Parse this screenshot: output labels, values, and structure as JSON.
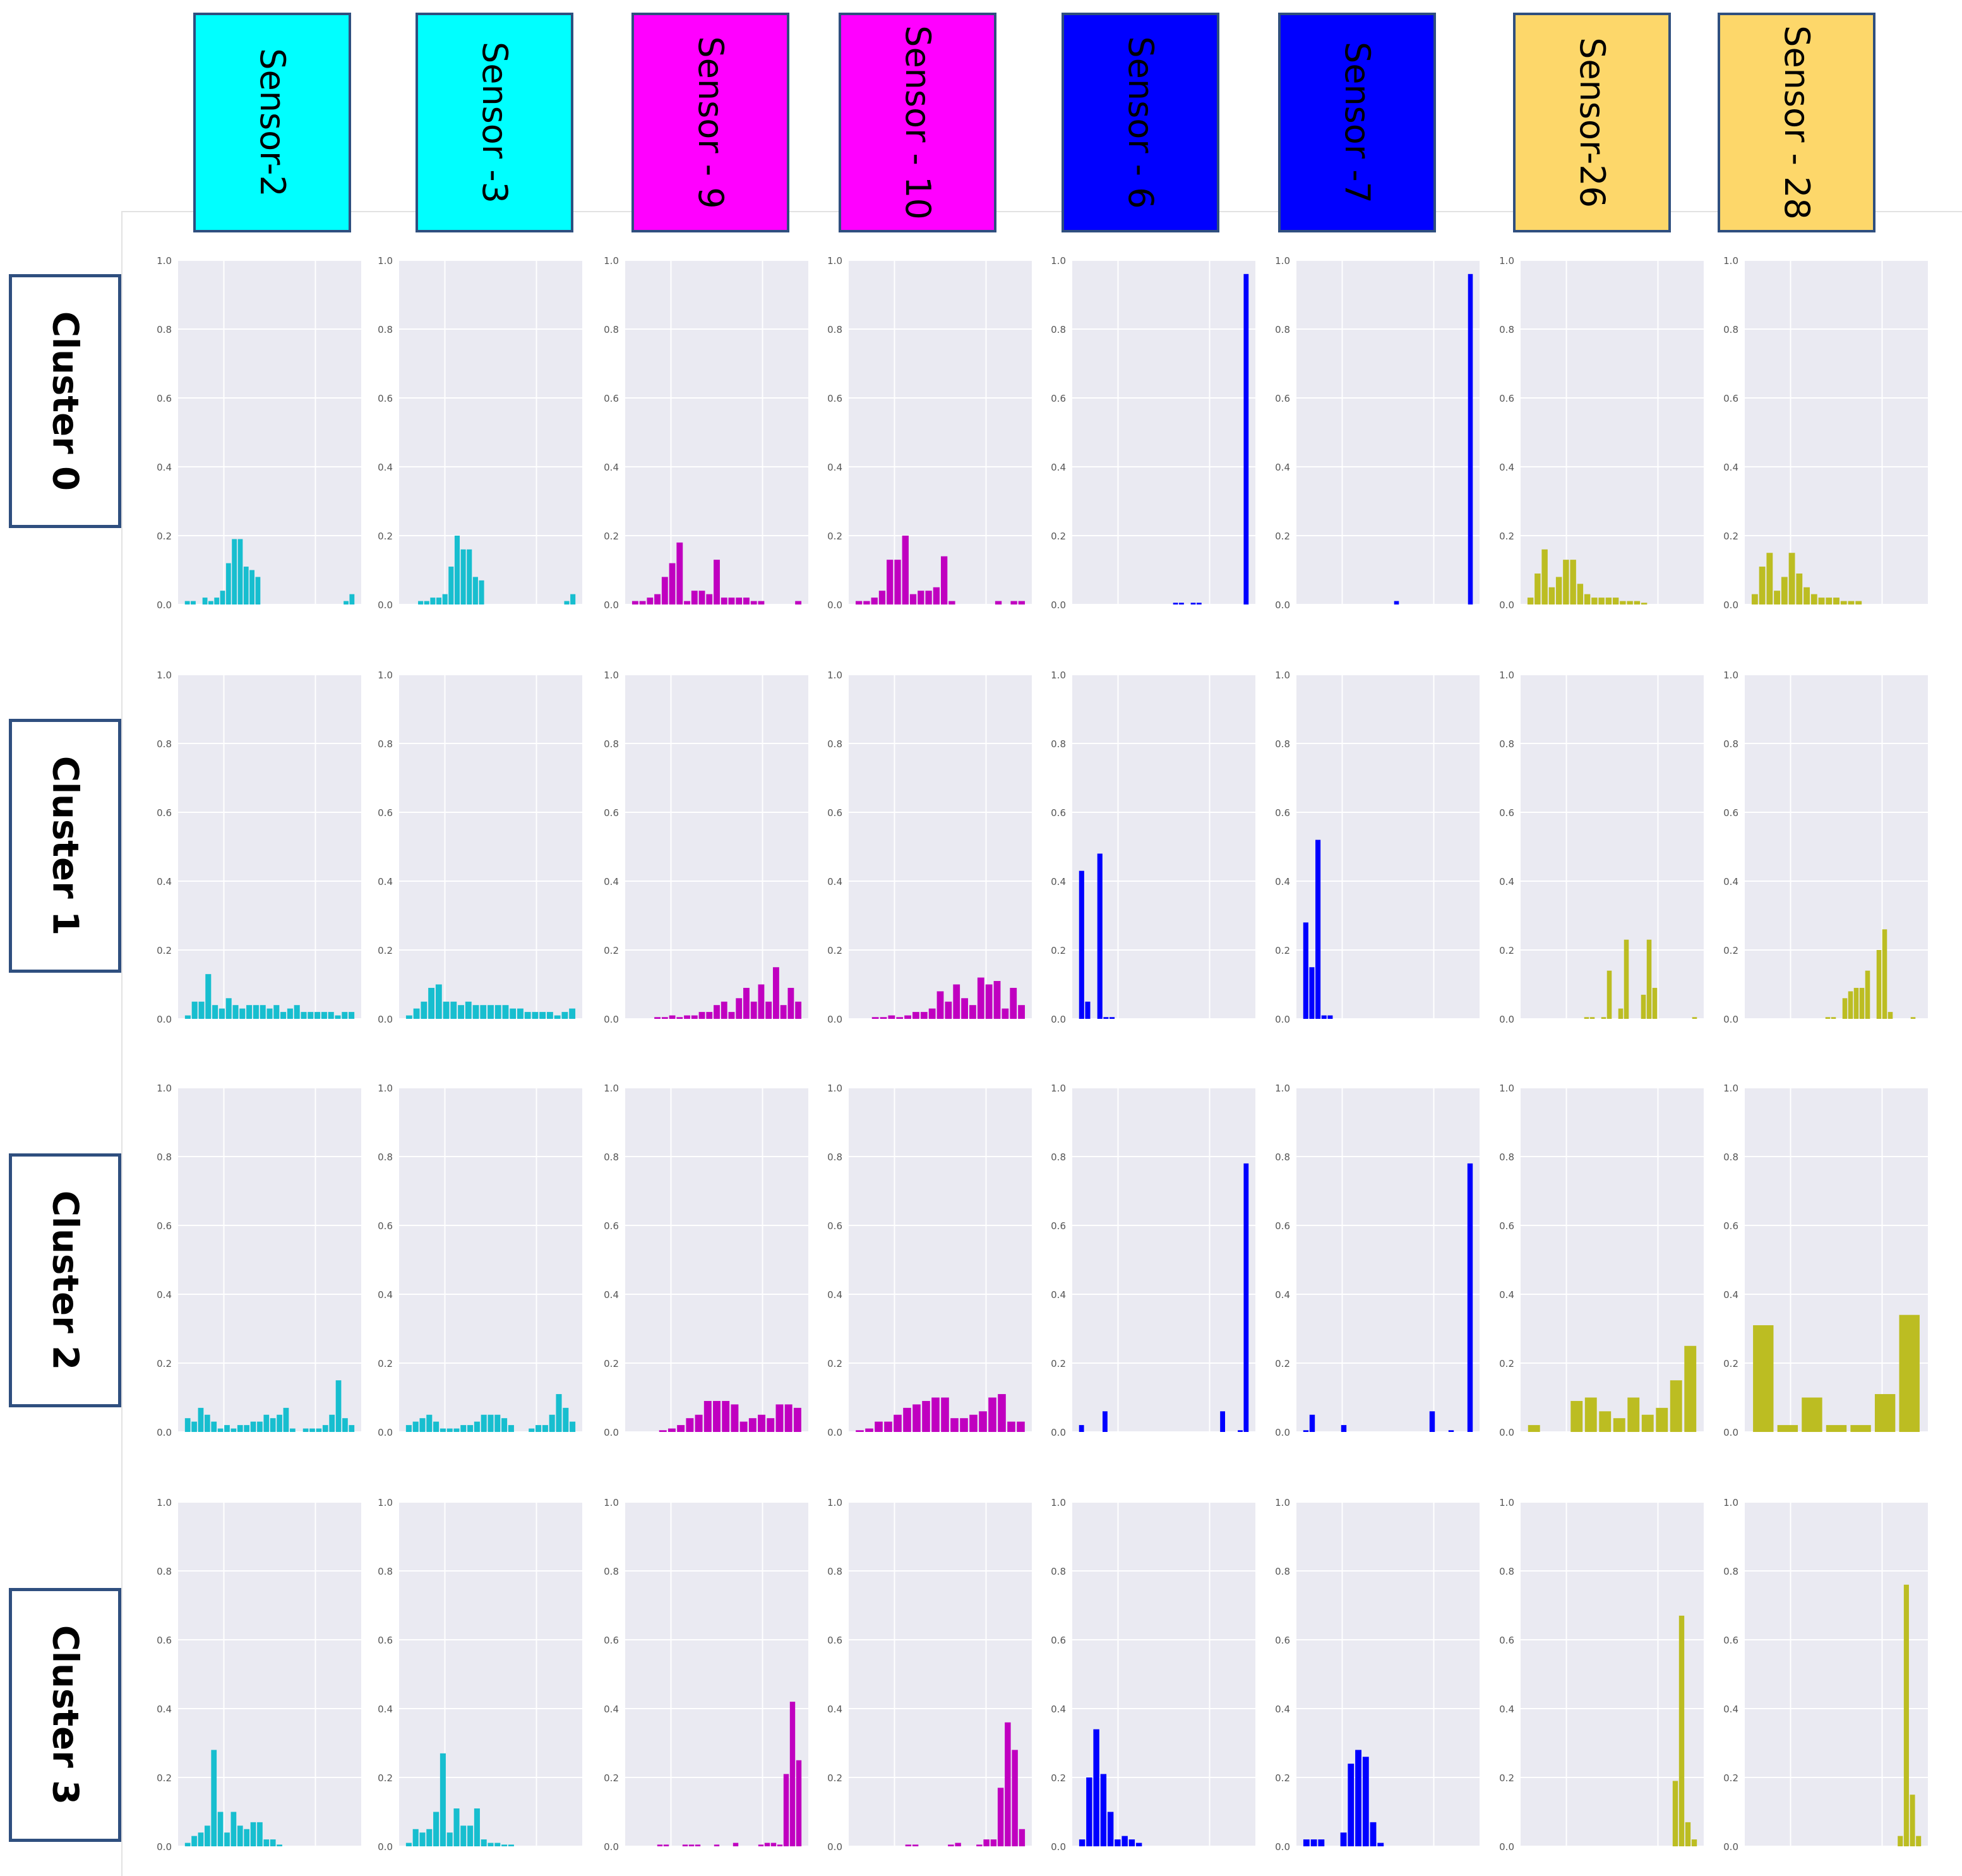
{
  "chart_data": {
    "type": "bar",
    "title": "",
    "ylim": [
      0,
      1.0
    ],
    "yticks": [
      "0.0",
      "0.2",
      "0.4",
      "0.6",
      "0.8",
      "1.0"
    ],
    "grid": true,
    "columns": [
      {
        "label": "Sensor-2",
        "color": "#17becf",
        "header_color": "#00ffff",
        "bar_color": "#17becf"
      },
      {
        "label": "Sensor -3",
        "color": "#17becf",
        "header_color": "#00ffff",
        "bar_color": "#17becf"
      },
      {
        "label": "Sensor - 9",
        "color": "#c000c0",
        "header_color": "#ff00ff",
        "bar_color": "#c000c0"
      },
      {
        "label": "Sensor - 10",
        "color": "#c000c0",
        "header_color": "#ff00ff",
        "bar_color": "#c000c0"
      },
      {
        "label": "Sensor - 6",
        "color": "#0000ff",
        "header_color": "#0000ff",
        "bar_color": "#0000ff"
      },
      {
        "label": "Sensor -7",
        "color": "#0000ff",
        "header_color": "#0000ff",
        "bar_color": "#0000ff"
      },
      {
        "label": "Sensor-26",
        "color": "#bcbd22",
        "header_color": "#fdd76a",
        "bar_color": "#bcbd22"
      },
      {
        "label": "Sensor - 28",
        "color": "#bcbd22",
        "header_color": "#fdd76a",
        "bar_color": "#bcbd22"
      }
    ],
    "rows": [
      {
        "label": "Cluster 0",
        "histograms": [
          [
            0.01,
            0.01,
            0.0,
            0.02,
            0.01,
            0.02,
            0.04,
            0.12,
            0.19,
            0.19,
            0.11,
            0.1,
            0.08,
            0,
            0,
            0,
            0,
            0,
            0,
            0,
            0,
            0,
            0,
            0,
            0,
            0,
            0,
            0.01,
            0.03
          ],
          [
            0.0,
            0.0,
            0.01,
            0.01,
            0.02,
            0.02,
            0.03,
            0.11,
            0.2,
            0.16,
            0.16,
            0.08,
            0.07,
            0,
            0,
            0,
            0,
            0,
            0,
            0,
            0,
            0,
            0,
            0,
            0,
            0,
            0.01,
            0.03
          ],
          [
            0.01,
            0.01,
            0.02,
            0.03,
            0.08,
            0.12,
            0.18,
            0.01,
            0.04,
            0.04,
            0.03,
            0.13,
            0.02,
            0.02,
            0.02,
            0.02,
            0.01,
            0.01,
            0,
            0,
            0,
            0,
            0.01
          ],
          [
            0.01,
            0.01,
            0.02,
            0.04,
            0.13,
            0.13,
            0.2,
            0.03,
            0.04,
            0.04,
            0.05,
            0.14,
            0.01,
            0,
            0,
            0,
            0,
            0,
            0.01,
            0,
            0.01,
            0.01
          ],
          [
            0,
            0,
            0,
            0,
            0,
            0,
            0,
            0,
            0,
            0,
            0,
            0,
            0,
            0,
            0,
            0,
            0.005,
            0.005,
            0,
            0.005,
            0.005,
            0,
            0,
            0,
            0,
            0,
            0,
            0,
            0.96
          ],
          [
            0,
            0,
            0,
            0,
            0,
            0,
            0,
            0,
            0,
            0,
            0,
            0,
            0,
            0,
            0,
            0,
            0.01,
            0,
            0,
            0,
            0,
            0,
            0,
            0,
            0,
            0,
            0,
            0,
            0,
            0.96
          ],
          [
            0.02,
            0.09,
            0.16,
            0.05,
            0.08,
            0.13,
            0.13,
            0.06,
            0.03,
            0.02,
            0.02,
            0.02,
            0.02,
            0.01,
            0.01,
            0.01,
            0.005,
            0,
            0,
            0,
            0,
            0,
            0,
            0
          ],
          [
            0.03,
            0.11,
            0.15,
            0.04,
            0.08,
            0.15,
            0.09,
            0.05,
            0.03,
            0.02,
            0.02,
            0.02,
            0.01,
            0.01,
            0.01,
            0,
            0,
            0,
            0,
            0,
            0,
            0,
            0
          ]
        ]
      },
      {
        "label": "Cluster 1",
        "histograms": [
          [
            0.01,
            0.05,
            0.05,
            0.13,
            0.04,
            0.03,
            0.06,
            0.04,
            0.03,
            0.04,
            0.04,
            0.04,
            0.03,
            0.04,
            0.02,
            0.03,
            0.04,
            0.02,
            0.02,
            0.02,
            0.02,
            0.02,
            0.01,
            0.02,
            0.02
          ],
          [
            0.01,
            0.03,
            0.05,
            0.09,
            0.1,
            0.05,
            0.05,
            0.04,
            0.05,
            0.04,
            0.04,
            0.04,
            0.04,
            0.04,
            0.03,
            0.03,
            0.02,
            0.02,
            0.02,
            0.02,
            0.01,
            0.02,
            0.03
          ],
          [
            0.0,
            0.0,
            0.0,
            0.005,
            0.005,
            0.01,
            0.005,
            0.01,
            0.01,
            0.02,
            0.02,
            0.04,
            0.05,
            0.02,
            0.06,
            0.09,
            0.05,
            0.1,
            0.05,
            0.15,
            0.04,
            0.09,
            0.05
          ],
          [
            0.0,
            0.0,
            0.005,
            0.005,
            0.01,
            0.005,
            0.01,
            0.02,
            0.02,
            0.03,
            0.08,
            0.05,
            0.1,
            0.06,
            0.04,
            0.12,
            0.1,
            0.11,
            0.03,
            0.09,
            0.04
          ],
          [
            0.43,
            0.05,
            0,
            0.48,
            0.005,
            0.005,
            0,
            0,
            0,
            0,
            0,
            0,
            0,
            0,
            0,
            0,
            0,
            0,
            0,
            0,
            0,
            0,
            0,
            0,
            0,
            0,
            0,
            0
          ],
          [
            0.28,
            0.15,
            0.52,
            0.01,
            0.01,
            0,
            0,
            0,
            0,
            0,
            0,
            0,
            0,
            0,
            0,
            0,
            0,
            0,
            0,
            0,
            0,
            0,
            0,
            0,
            0,
            0,
            0,
            0
          ],
          [
            0,
            0,
            0,
            0,
            0,
            0,
            0,
            0,
            0,
            0,
            0.005,
            0.005,
            0,
            0.005,
            0.14,
            0,
            0.03,
            0.23,
            0,
            0,
            0.07,
            0.23,
            0.09,
            0,
            0,
            0,
            0,
            0,
            0,
            0.005
          ],
          [
            0,
            0,
            0,
            0,
            0,
            0,
            0,
            0,
            0,
            0,
            0,
            0,
            0,
            0.005,
            0.005,
            0,
            0.06,
            0.08,
            0.09,
            0.09,
            0.14,
            0.0,
            0.2,
            0.26,
            0.02,
            0,
            0,
            0,
            0.005,
            0
          ]
        ]
      },
      {
        "label": "Cluster 2",
        "histograms": [
          [
            0.04,
            0.03,
            0.07,
            0.05,
            0.03,
            0.01,
            0.02,
            0.01,
            0.02,
            0.02,
            0.03,
            0.03,
            0.05,
            0.04,
            0.05,
            0.07,
            0.01,
            0.0,
            0.01,
            0.01,
            0.01,
            0.02,
            0.05,
            0.15,
            0.04,
            0.02
          ],
          [
            0.02,
            0.03,
            0.04,
            0.05,
            0.03,
            0.01,
            0.01,
            0.01,
            0.02,
            0.02,
            0.03,
            0.05,
            0.05,
            0.05,
            0.04,
            0.02,
            0.0,
            0.0,
            0.01,
            0.02,
            0.02,
            0.05,
            0.11,
            0.07,
            0.03
          ],
          [
            0.0,
            0.0,
            0.0,
            0.005,
            0.01,
            0.02,
            0.04,
            0.05,
            0.09,
            0.09,
            0.09,
            0.08,
            0.03,
            0.04,
            0.05,
            0.04,
            0.08,
            0.08,
            0.07
          ],
          [
            0.005,
            0.01,
            0.03,
            0.03,
            0.05,
            0.07,
            0.08,
            0.09,
            0.1,
            0.1,
            0.04,
            0.04,
            0.05,
            0.06,
            0.1,
            0.11,
            0.03,
            0.03
          ],
          [
            0.02,
            0,
            0,
            0,
            0.06,
            0,
            0,
            0,
            0,
            0,
            0,
            0,
            0,
            0,
            0,
            0,
            0,
            0,
            0,
            0,
            0,
            0,
            0,
            0,
            0.06,
            0,
            0,
            0.005,
            0.78
          ],
          [
            0.005,
            0.05,
            0,
            0,
            0,
            0,
            0.02,
            0,
            0,
            0,
            0,
            0,
            0,
            0,
            0,
            0,
            0,
            0,
            0,
            0,
            0.06,
            0,
            0,
            0.005,
            0,
            0,
            0.78
          ],
          [
            0.02,
            0,
            0,
            0.09,
            0.1,
            0.06,
            0.04,
            0.1,
            0.05,
            0.07,
            0.15,
            0.25
          ],
          [
            0.31,
            0.02,
            0.1,
            0.02,
            0.02,
            0.11,
            0.34
          ]
        ]
      },
      {
        "label": "Cluster 3",
        "histograms": [
          [
            0.01,
            0.03,
            0.04,
            0.06,
            0.28,
            0.1,
            0.04,
            0.1,
            0.06,
            0.05,
            0.07,
            0.07,
            0.02,
            0.02,
            0.005,
            0,
            0,
            0,
            0,
            0,
            0,
            0,
            0,
            0,
            0,
            0
          ],
          [
            0.01,
            0.05,
            0.04,
            0.05,
            0.1,
            0.27,
            0.04,
            0.11,
            0.06,
            0.06,
            0.11,
            0.02,
            0.01,
            0.01,
            0.005,
            0.005,
            0,
            0,
            0,
            0,
            0,
            0,
            0,
            0,
            0
          ],
          [
            0.0,
            0.0,
            0.0,
            0.0,
            0.005,
            0.005,
            0.0,
            0.0,
            0.005,
            0.005,
            0.005,
            0.0,
            0.0,
            0.005,
            0.0,
            0.0,
            0.01,
            0.0,
            0.0,
            0.0,
            0.005,
            0.01,
            0.01,
            0.005,
            0.21,
            0.42,
            0.25
          ],
          [
            0.0,
            0.0,
            0.0,
            0.0,
            0.0,
            0.0,
            0.0,
            0.005,
            0.005,
            0.0,
            0.0,
            0.0,
            0.0,
            0.005,
            0.01,
            0.0,
            0.0,
            0.005,
            0.02,
            0.02,
            0.17,
            0.36,
            0.28,
            0.05
          ],
          [
            0.02,
            0.2,
            0.34,
            0.21,
            0.1,
            0.02,
            0.03,
            0.02,
            0.01,
            0,
            0,
            0,
            0,
            0,
            0,
            0,
            0,
            0,
            0,
            0,
            0,
            0,
            0,
            0
          ],
          [
            0.02,
            0.02,
            0.02,
            0,
            0,
            0.04,
            0.24,
            0.28,
            0.26,
            0.07,
            0.01,
            0,
            0,
            0,
            0,
            0,
            0,
            0,
            0,
            0,
            0,
            0,
            0
          ],
          [
            0,
            0,
            0,
            0,
            0,
            0,
            0,
            0,
            0,
            0,
            0,
            0,
            0,
            0,
            0,
            0,
            0,
            0,
            0,
            0,
            0,
            0,
            0,
            0.19,
            0.67,
            0.07,
            0.02
          ],
          [
            0,
            0,
            0,
            0,
            0,
            0,
            0,
            0,
            0,
            0,
            0,
            0,
            0,
            0,
            0,
            0,
            0,
            0,
            0,
            0,
            0,
            0,
            0,
            0,
            0.03,
            0.76,
            0.15,
            0.03
          ]
        ]
      }
    ]
  }
}
